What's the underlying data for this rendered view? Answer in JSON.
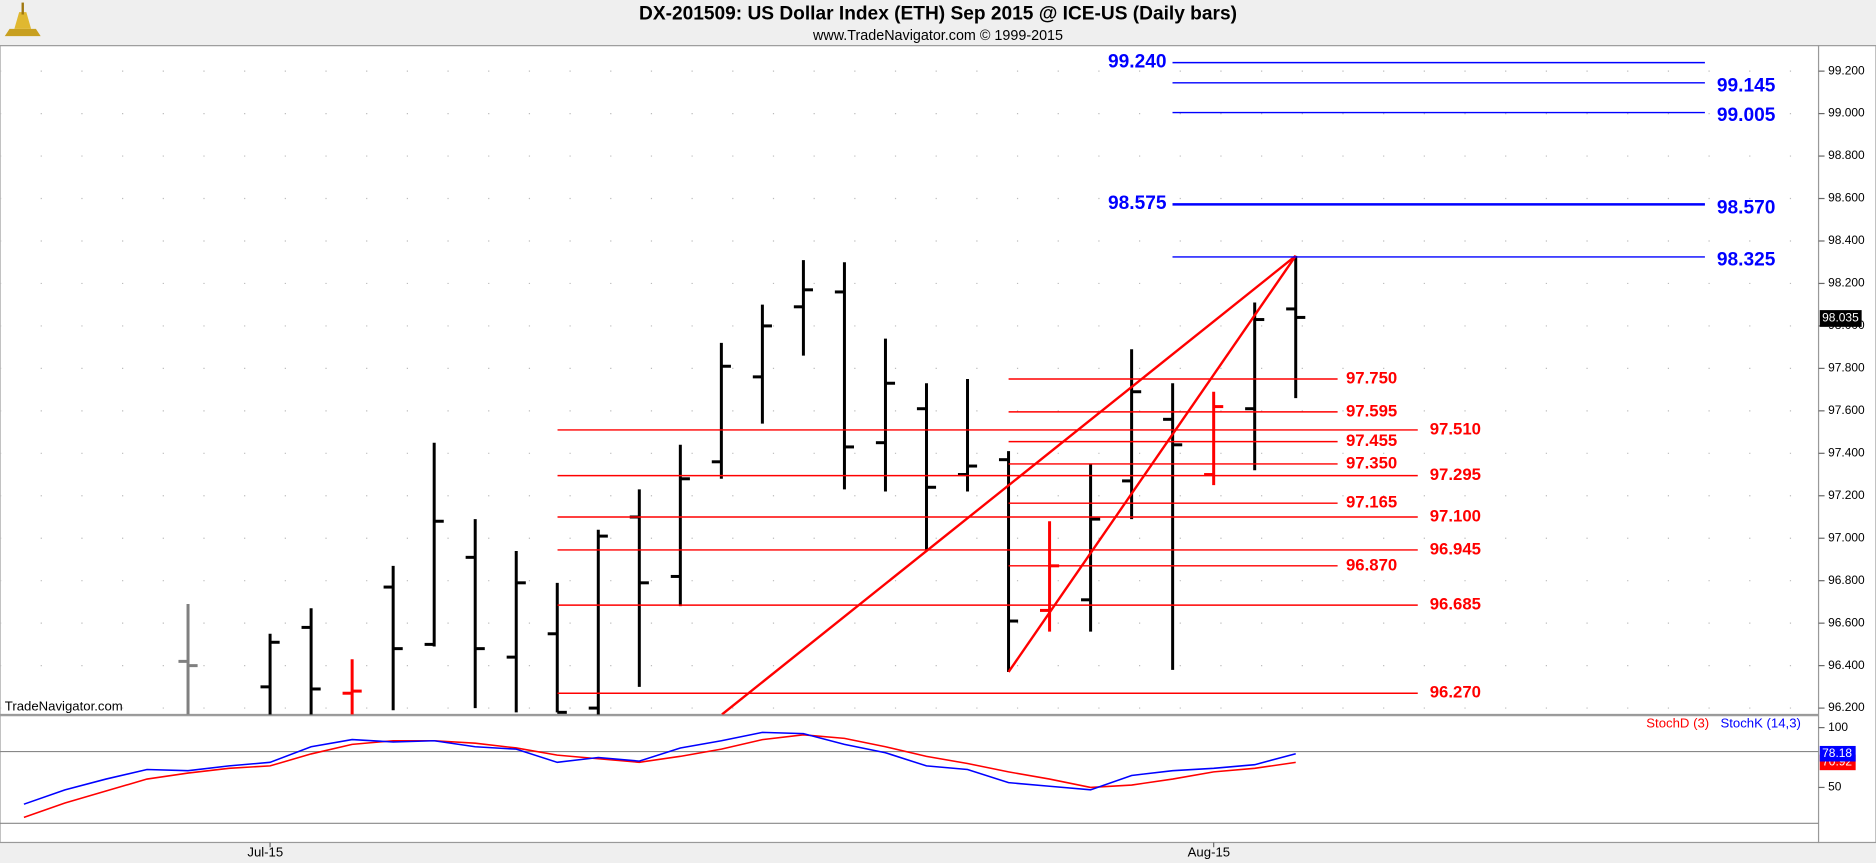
{
  "chart_data": [
    {
      "type": "ohlc",
      "title": "DX-201509:  US Dollar Index (ETH) Sep 2015 @ ICE-US  (Daily bars)",
      "subtitle": "www.TradeNavigator.com © 1999-2015",
      "watermark": "TradeNavigator.com",
      "ylim": [
        96.17,
        99.32
      ],
      "yticks": [
        {
          "value": 96.2,
          "label": "96.200"
        },
        {
          "value": 96.4,
          "label": "96.400"
        },
        {
          "value": 96.6,
          "label": "96.600"
        },
        {
          "value": 96.8,
          "label": "96.800"
        },
        {
          "value": 97.0,
          "label": "97.000"
        },
        {
          "value": 97.2,
          "label": "97.200"
        },
        {
          "value": 97.4,
          "label": "97.400"
        },
        {
          "value": 97.6,
          "label": "97.600"
        },
        {
          "value": 97.8,
          "label": "97.800"
        },
        {
          "value": 98.0,
          "label": "98.000"
        },
        {
          "value": 98.2,
          "label": "98.200"
        },
        {
          "value": 98.4,
          "label": "98.400"
        },
        {
          "value": 98.6,
          "label": "98.600"
        },
        {
          "value": 98.8,
          "label": "98.800"
        },
        {
          "value": 99.0,
          "label": "99.000"
        },
        {
          "value": 99.2,
          "label": "99.200"
        }
      ],
      "grid": true,
      "ohlc": {
        "open": [
          null,
          null,
          null,
          null,
          96.42,
          null,
          96.3,
          96.58,
          96.27,
          96.77,
          96.5,
          96.91,
          96.44,
          96.55,
          96.2,
          97.1,
          96.82,
          97.36,
          97.76,
          98.09,
          98.16,
          97.45,
          97.61,
          97.3,
          97.37,
          96.66,
          96.71,
          97.27,
          97.56,
          97.3,
          97.61,
          98.08
        ],
        "high": [
          null,
          null,
          null,
          null,
          96.69,
          null,
          96.55,
          96.67,
          96.43,
          96.87,
          97.45,
          97.09,
          96.94,
          96.79,
          97.04,
          97.23,
          97.44,
          97.92,
          98.1,
          98.31,
          98.3,
          97.94,
          97.73,
          97.75,
          97.41,
          97.08,
          97.35,
          97.89,
          97.73,
          97.69,
          98.11,
          98.33
        ],
        "low": [
          null,
          null,
          null,
          null,
          96.15,
          null,
          96.15,
          96.15,
          96.17,
          96.19,
          96.49,
          96.2,
          96.18,
          96.18,
          96.15,
          96.3,
          96.68,
          97.28,
          97.54,
          97.86,
          97.23,
          97.22,
          96.94,
          97.22,
          96.37,
          96.56,
          96.56,
          97.09,
          96.38,
          97.25,
          97.32,
          97.66
        ],
        "close": [
          null,
          null,
          null,
          null,
          96.4,
          null,
          96.51,
          96.29,
          96.28,
          96.48,
          97.08,
          96.48,
          96.79,
          96.18,
          97.01,
          96.79,
          97.28,
          97.81,
          98.0,
          98.17,
          97.43,
          97.73,
          97.24,
          97.34,
          96.61,
          96.87,
          97.09,
          97.69,
          97.44,
          97.62,
          98.03,
          98.04
        ],
        "colors": [
          null,
          null,
          null,
          null,
          "#808080",
          null,
          "#000000",
          "#000000",
          "#ff0000",
          "#000000",
          "#000000",
          "#000000",
          "#000000",
          "#000000",
          "#000000",
          "#000000",
          "#000000",
          "#000000",
          "#000000",
          "#000000",
          "#000000",
          "#000000",
          "#000000",
          "#000000",
          "#000000",
          "#ff0000",
          "#000000",
          "#000000",
          "#000000",
          "#ff0000",
          "#000000",
          "#000000"
        ]
      },
      "level_groups": [
        {
          "color": "#0000ff",
          "label_position": "left",
          "values": [
            99.24,
            98.575
          ],
          "value_labels": [
            "99.240",
            "98.575"
          ]
        },
        {
          "color": "#0000ff",
          "label_position": "right",
          "values": [
            99.145,
            99.005,
            98.57,
            98.325
          ],
          "value_labels": [
            "99.145",
            "99.005",
            "98.570",
            "98.325"
          ]
        },
        {
          "color": "#ff0000",
          "label_position": "right",
          "values": [
            97.75,
            97.595,
            97.455,
            97.35,
            97.165,
            96.87
          ],
          "value_labels": [
            "97.750",
            "97.595",
            "97.455",
            "97.350",
            "97.165",
            "96.870"
          ]
        },
        {
          "color": "#ff0000",
          "label_position": "right",
          "values": [
            97.51,
            97.295,
            97.1,
            96.945,
            96.685,
            96.27
          ],
          "value_labels": [
            "97.510",
            "97.295",
            "97.100",
            "96.945",
            "96.685",
            "96.270"
          ]
        }
      ],
      "trend_color": "#ff0000",
      "last_price": 98.035
    },
    {
      "type": "line",
      "categories": [
        null,
        null,
        null,
        null,
        null,
        null,
        "Jul-15",
        null,
        null,
        null,
        null,
        null,
        null,
        null,
        null,
        null,
        null,
        null,
        null,
        null,
        null,
        null,
        null,
        null,
        null,
        null,
        null,
        null,
        null,
        "Aug-15",
        null,
        null
      ],
      "ylim": [
        20,
        110
      ],
      "yticks": [
        50,
        100
      ],
      "hlines": [
        80
      ],
      "series": [
        {
          "name": "StochD (3)",
          "color": "#ff0000",
          "values": [
            25,
            37,
            47,
            57,
            62,
            66,
            68,
            78,
            86,
            89,
            89,
            87,
            83,
            77,
            74,
            71,
            76,
            82,
            90,
            94,
            91,
            84,
            76,
            70,
            63,
            57,
            50,
            52,
            57,
            63,
            66,
            70.92
          ]
        },
        {
          "name": "StochK (14,3)",
          "color": "#0000ff",
          "values": [
            36,
            48,
            57,
            65,
            64,
            68,
            71,
            84,
            90,
            88,
            89,
            84,
            82,
            71,
            75,
            72,
            83,
            89,
            96,
            95,
            86,
            79,
            68,
            65,
            54,
            51,
            48,
            60,
            64,
            66,
            69,
            78.18
          ]
        }
      ]
    }
  ]
}
